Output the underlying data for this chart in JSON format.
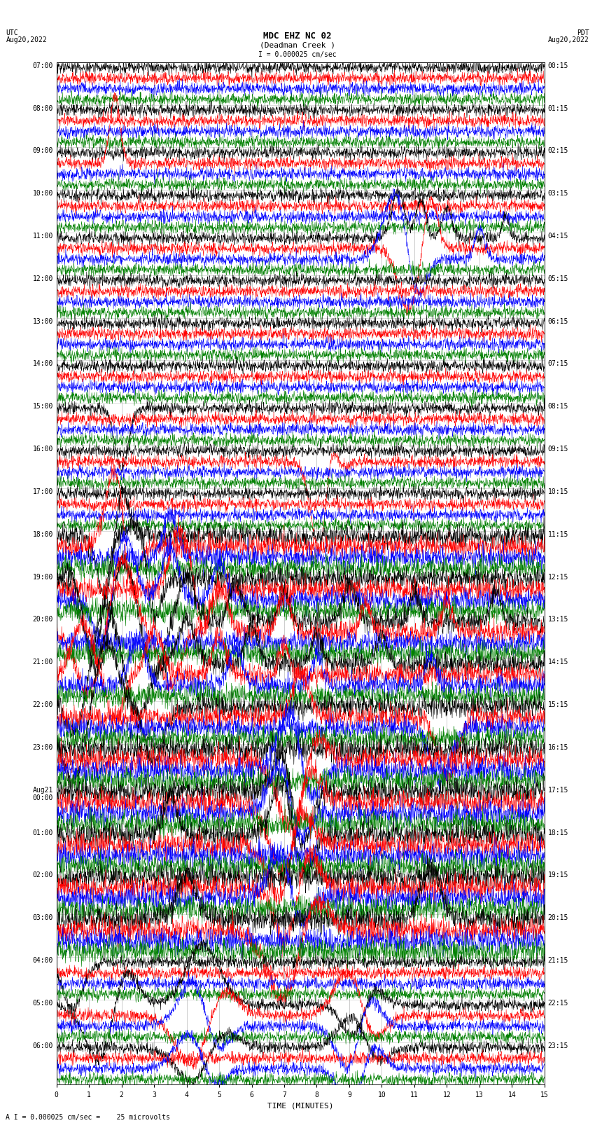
{
  "title_line1": "MDC EHZ NC 02",
  "title_line2": "(Deadman Creek )",
  "scale_label": "I = 0.000025 cm/sec",
  "footer_label": "A I = 0.000025 cm/sec =    25 microvolts",
  "utc_label": "UTC\nAug20,2022",
  "pdt_label": "PDT\nAug20,2022",
  "xlabel": "TIME (MINUTES)",
  "bg_color": "#ffffff",
  "trace_colors": [
    "black",
    "red",
    "blue",
    "green"
  ],
  "left_times_utc": [
    "07:00",
    "08:00",
    "09:00",
    "10:00",
    "11:00",
    "12:00",
    "13:00",
    "14:00",
    "15:00",
    "16:00",
    "17:00",
    "18:00",
    "19:00",
    "20:00",
    "21:00",
    "22:00",
    "23:00",
    "Aug21\n00:00",
    "01:00",
    "02:00",
    "03:00",
    "04:00",
    "05:00",
    "06:00"
  ],
  "right_times_pdt": [
    "00:15",
    "01:15",
    "02:15",
    "03:15",
    "04:15",
    "05:15",
    "06:15",
    "07:15",
    "08:15",
    "09:15",
    "10:15",
    "11:15",
    "12:15",
    "13:15",
    "14:15",
    "15:15",
    "16:15",
    "17:15",
    "18:15",
    "19:15",
    "20:15",
    "21:15",
    "22:15",
    "23:15"
  ],
  "n_rows": 24,
  "n_cols": 4,
  "x_min": 0,
  "x_max": 15,
  "x_ticks": [
    0,
    1,
    2,
    3,
    4,
    5,
    6,
    7,
    8,
    9,
    10,
    11,
    12,
    13,
    14,
    15
  ],
  "figsize": [
    8.5,
    16.13
  ],
  "dpi": 100,
  "grid_color": "#888888",
  "font_size_title": 9,
  "font_size_label": 7,
  "font_size_tick": 7,
  "font_size_footer": 7
}
